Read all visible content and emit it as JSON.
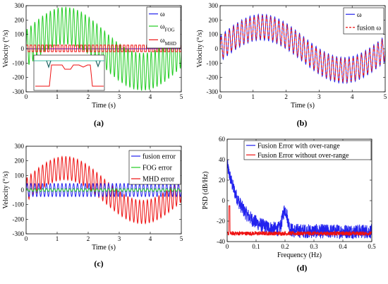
{
  "chart_data": [
    {
      "id": "a",
      "type": "line",
      "caption": "(a)",
      "xlabel": "Time (s)",
      "ylabel": "Velocity (°/s)",
      "xlim": [
        0,
        5
      ],
      "ylim": [
        -300,
        300
      ],
      "xticks": [
        0,
        1,
        2,
        3,
        4,
        5
      ],
      "yticks": [
        -300,
        -200,
        -100,
        0,
        100,
        200,
        300
      ],
      "grid": false,
      "legend_position": "top-right",
      "series": [
        {
          "label_main": "ω",
          "label_sub": "",
          "color": "#2222ee",
          "style": "solid",
          "model": {
            "kind": "sine",
            "amp": 0,
            "freq": 0.2,
            "offset": 0,
            "wiggle_amp": 0,
            "wiggle_freq": 8
          }
        },
        {
          "label_main": "ω",
          "label_sub": "FOG",
          "color": "#22cc22",
          "style": "solid",
          "model": {
            "kind": "sine",
            "amp": 160,
            "freq": 0.2,
            "offset": 0,
            "wiggle_amp": 130,
            "wiggle_freq": 8
          }
        },
        {
          "label_main": "ω",
          "label_sub": "MHD",
          "color": "#ee1111",
          "style": "solid",
          "model": {
            "kind": "square",
            "low": -20,
            "high": 25,
            "freq": 8
          }
        }
      ],
      "inset": true
    },
    {
      "id": "b",
      "type": "line",
      "caption": "(b)",
      "xlabel": "Time (s)",
      "ylabel": "Velocity (°/s)",
      "xlim": [
        0,
        5
      ],
      "ylim": [
        -300,
        300
      ],
      "xticks": [
        0,
        1,
        2,
        3,
        4,
        5
      ],
      "yticks": [
        -300,
        -200,
        -100,
        0,
        100,
        200,
        300
      ],
      "grid": false,
      "legend_position": "top-right",
      "series": [
        {
          "label_main": "ω",
          "label_sub": "",
          "color": "#2222ee",
          "style": "solid",
          "model": {
            "kind": "sine",
            "amp": 150,
            "freq": 0.2,
            "offset": 0,
            "wiggle_amp": 90,
            "wiggle_freq": 8
          }
        },
        {
          "label_main": "fusion ω",
          "label_sub": "",
          "color": "#ee1111",
          "style": "dashed",
          "model": {
            "kind": "sine",
            "amp": 150,
            "freq": 0.2,
            "offset": 0,
            "wiggle_amp": 80,
            "wiggle_freq": 8
          }
        }
      ]
    },
    {
      "id": "c",
      "type": "line",
      "caption": "(c)",
      "xlabel": "Time (s)",
      "ylabel": "Velocity (°/s)",
      "xlim": [
        0,
        5
      ],
      "ylim": [
        -300,
        300
      ],
      "xticks": [
        0,
        1,
        2,
        3,
        4,
        5
      ],
      "yticks": [
        -300,
        -200,
        -100,
        0,
        100,
        200,
        300
      ],
      "grid": false,
      "legend_position": "top-right",
      "series": [
        {
          "label_main": "MHD error",
          "label_sub": "",
          "color": "#ee1111",
          "style": "solid",
          "model": {
            "kind": "sine",
            "amp": 150,
            "freq": 0.2,
            "offset": 0,
            "wiggle_amp": 80,
            "wiggle_freq": 8
          }
        },
        {
          "label_main": "fusion error",
          "label_sub": "",
          "color": "#2222ee",
          "style": "solid",
          "model": {
            "kind": "sine",
            "amp": 0,
            "freq": 0.2,
            "offset": 0,
            "wiggle_amp": 45,
            "wiggle_freq": 8
          }
        },
        {
          "label_main": "FOG error",
          "label_sub": "",
          "color": "#22cc22",
          "style": "solid",
          "model": {
            "kind": "sine",
            "amp": 0,
            "freq": 0.2,
            "offset": 0,
            "wiggle_amp": 10,
            "wiggle_freq": 8
          }
        }
      ],
      "legend_order": [
        1,
        2,
        0
      ]
    },
    {
      "id": "d",
      "type": "line",
      "caption": "(d)",
      "xlabel": "Frequency (Hz)",
      "ylabel": "PSD (dB/Hz)",
      "xlim": [
        0,
        0.5
      ],
      "ylim": [
        -40,
        60
      ],
      "xticks": [
        0,
        0.1,
        0.2,
        0.3,
        0.4,
        0.5
      ],
      "yticks": [
        -40,
        -20,
        0,
        20,
        40,
        60
      ],
      "grid": false,
      "legend_position": "top-right",
      "series": [
        {
          "label_main": "Fusion Error with over-range",
          "label_sub": "",
          "color": "#2222ee",
          "style": "solid",
          "model": {
            "kind": "psd_over",
            "start": 35,
            "floor": -30,
            "decay": 0.05,
            "peak_f": 0.2,
            "peak_h": 20,
            "peak_w": 0.012,
            "noise": 7
          }
        },
        {
          "label_main": "Fusion Error without over-range",
          "label_sub": "",
          "color": "#ee1111",
          "style": "solid",
          "model": {
            "kind": "psd_flat",
            "level": -32,
            "spike_f": 0.008,
            "spike_h": -5,
            "noise": 4
          }
        }
      ]
    }
  ]
}
